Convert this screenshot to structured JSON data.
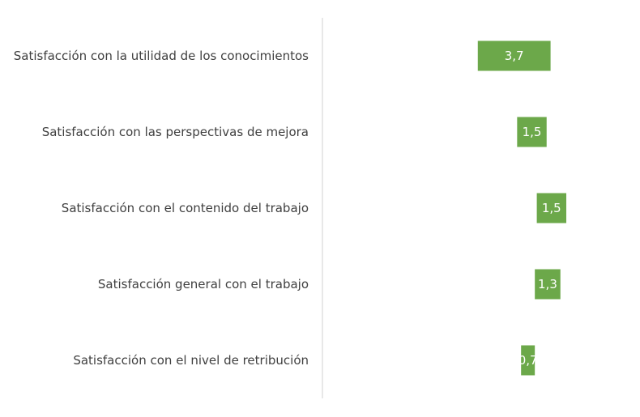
{
  "colors": {
    "bar": "#6ca84a",
    "axis": "#d0d0d0",
    "label_text": "#404040",
    "value_text": "#ffffff"
  },
  "chart_data": {
    "type": "bar",
    "orientation": "horizontal",
    "categories": [
      "Satisfacción con la utilidad de los conocimientos",
      "Satisfacción con las perspectivas de mejora",
      "Satisfacción con el contenido del trabajo",
      "Satisfacción general con el trabajo",
      "Satisfacción con el nivel de retribución"
    ],
    "series": [
      {
        "bar_start": [
          2.4,
          4.4,
          5.4,
          5.3,
          4.6
        ],
        "values": [
          3.7,
          1.5,
          1.5,
          1.3,
          0.7
        ],
        "labels": [
          "3,7",
          "1,5",
          "1,5",
          "1,3",
          "0,7"
        ]
      }
    ],
    "xlim": [
      -5.5,
      9.0
    ],
    "grid": false,
    "legend": "none",
    "title": "",
    "xlabel": "",
    "ylabel": ""
  }
}
